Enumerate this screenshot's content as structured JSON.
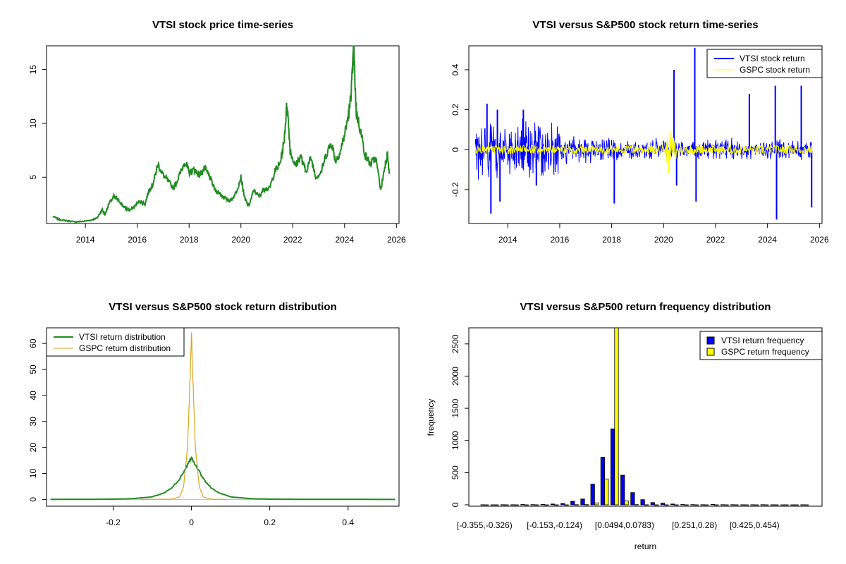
{
  "chart_data": [
    {
      "type": "line",
      "title": "VTSI stock price time-series",
      "xlabel": "",
      "ylabel": "",
      "xlim": [
        2012.5,
        2026.1
      ],
      "ylim": [
        0.7,
        17.2
      ],
      "xticks": [
        2014,
        2016,
        2018,
        2020,
        2022,
        2024,
        2026
      ],
      "yticks": [
        5,
        10,
        15
      ],
      "series": [
        {
          "color": "#228B22",
          "points": [
            [
              2012.75,
              1.35
            ],
            [
              2013.0,
              1.05
            ],
            [
              2013.3,
              0.95
            ],
            [
              2013.6,
              0.85
            ],
            [
              2013.9,
              0.9
            ],
            [
              2014.2,
              1.0
            ],
            [
              2014.45,
              1.2
            ],
            [
              2014.65,
              2.0
            ],
            [
              2014.75,
              1.5
            ],
            [
              2014.9,
              2.5
            ],
            [
              2015.1,
              3.2
            ],
            [
              2015.3,
              2.8
            ],
            [
              2015.5,
              2.2
            ],
            [
              2015.7,
              1.9
            ],
            [
              2015.9,
              2.3
            ],
            [
              2016.1,
              2.8
            ],
            [
              2016.3,
              2.5
            ],
            [
              2016.45,
              3.8
            ],
            [
              2016.6,
              4.3
            ],
            [
              2016.8,
              6.2
            ],
            [
              2017.0,
              5.2
            ],
            [
              2017.2,
              4.6
            ],
            [
              2017.4,
              4.0
            ],
            [
              2017.6,
              5.0
            ],
            [
              2017.85,
              6.5
            ],
            [
              2018.0,
              5.4
            ],
            [
              2018.2,
              5.7
            ],
            [
              2018.4,
              5.2
            ],
            [
              2018.6,
              5.8
            ],
            [
              2018.8,
              5.0
            ],
            [
              2019.0,
              3.8
            ],
            [
              2019.2,
              3.5
            ],
            [
              2019.4,
              3.0
            ],
            [
              2019.6,
              2.8
            ],
            [
              2019.8,
              3.5
            ],
            [
              2020.0,
              5.0
            ],
            [
              2020.15,
              3.0
            ],
            [
              2020.3,
              2.3
            ],
            [
              2020.5,
              3.8
            ],
            [
              2020.7,
              3.2
            ],
            [
              2020.9,
              4.0
            ],
            [
              2021.1,
              3.9
            ],
            [
              2021.3,
              5.5
            ],
            [
              2021.5,
              6.2
            ],
            [
              2021.65,
              8.0
            ],
            [
              2021.78,
              12.0
            ],
            [
              2021.9,
              7.5
            ],
            [
              2022.1,
              6.0
            ],
            [
              2022.3,
              7.0
            ],
            [
              2022.5,
              5.5
            ],
            [
              2022.7,
              6.8
            ],
            [
              2022.9,
              5.0
            ],
            [
              2023.1,
              5.5
            ],
            [
              2023.3,
              7.2
            ],
            [
              2023.5,
              8.2
            ],
            [
              2023.65,
              6.5
            ],
            [
              2023.85,
              7.5
            ],
            [
              2024.05,
              9.5
            ],
            [
              2024.2,
              11.5
            ],
            [
              2024.3,
              14.5
            ],
            [
              2024.35,
              17.1
            ],
            [
              2024.45,
              11.0
            ],
            [
              2024.6,
              9.5
            ],
            [
              2024.8,
              7.0
            ],
            [
              2025.0,
              6.2
            ],
            [
              2025.2,
              6.8
            ],
            [
              2025.4,
              3.8
            ],
            [
              2025.55,
              6.0
            ],
            [
              2025.65,
              7.2
            ],
            [
              2025.72,
              5.3
            ]
          ]
        }
      ]
    },
    {
      "type": "line",
      "title": "VTSI versus S&P500 stock return time-series",
      "xlabel": "",
      "ylabel": "",
      "xlim": [
        2012.5,
        2026.1
      ],
      "ylim": [
        -0.37,
        0.52
      ],
      "xticks": [
        2014,
        2016,
        2018,
        2020,
        2022,
        2024,
        2026
      ],
      "yticks": [
        -0.2,
        0.0,
        0.2,
        0.4
      ],
      "legend": "top-right",
      "legend_entries": [
        "VTSI stock return",
        "GSPC stock return"
      ],
      "series": [
        {
          "name": "VTSI stock return",
          "color": "#0000FF",
          "spikes": [
            [
              2013.2,
              0.23
            ],
            [
              2013.35,
              -0.32
            ],
            [
              2013.6,
              0.2
            ],
            [
              2013.7,
              -0.26
            ],
            [
              2014.6,
              0.2
            ],
            [
              2015.1,
              -0.18
            ],
            [
              2018.1,
              -0.27
            ],
            [
              2020.4,
              0.4
            ],
            [
              2020.5,
              -0.18
            ],
            [
              2021.2,
              0.51
            ],
            [
              2021.25,
              -0.26
            ],
            [
              2023.3,
              0.28
            ],
            [
              2024.3,
              0.32
            ],
            [
              2024.35,
              -0.35
            ],
            [
              2025.3,
              0.32
            ],
            [
              2025.7,
              -0.29
            ]
          ]
        },
        {
          "name": "GSPC stock return",
          "color": "#FFFF00",
          "spikes": [
            [
              2020.2,
              -0.12
            ],
            [
              2020.25,
              0.09
            ]
          ]
        }
      ]
    },
    {
      "type": "line",
      "title": "VTSI versus S&P500 stock return distribution",
      "xlabel": "",
      "ylabel": "",
      "xlim": [
        -0.37,
        0.53
      ],
      "ylim": [
        0,
        65
      ],
      "xticks": [
        -0.2,
        0.0,
        0.2,
        0.4
      ],
      "yticks": [
        0,
        10,
        20,
        30,
        40,
        50,
        60
      ],
      "legend": "top-left",
      "legend_entries": [
        "VTSI return distribution",
        "GSPC return distribution"
      ],
      "series": [
        {
          "name": "VTSI return distribution",
          "color": "#228B22",
          "points": [
            [
              -0.36,
              0
            ],
            [
              -0.2,
              0.1
            ],
            [
              -0.15,
              0.3
            ],
            [
              -0.1,
              1.0
            ],
            [
              -0.07,
              2.5
            ],
            [
              -0.05,
              4.5
            ],
            [
              -0.03,
              8.0
            ],
            [
              -0.015,
              12.0
            ],
            [
              -0.005,
              15.0
            ],
            [
              0.0,
              16.0
            ],
            [
              0.005,
              15.0
            ],
            [
              0.015,
              12.0
            ],
            [
              0.03,
              8.0
            ],
            [
              0.05,
              4.5
            ],
            [
              0.07,
              2.5
            ],
            [
              0.1,
              1.0
            ],
            [
              0.15,
              0.3
            ],
            [
              0.2,
              0.1
            ],
            [
              0.3,
              0.05
            ],
            [
              0.52,
              0
            ]
          ]
        },
        {
          "name": "GSPC return distribution",
          "color": "#DAA520",
          "points": [
            [
              -0.13,
              0
            ],
            [
              -0.05,
              0.1
            ],
            [
              -0.03,
              1.0
            ],
            [
              -0.02,
              5.0
            ],
            [
              -0.01,
              20.0
            ],
            [
              -0.005,
              40.0
            ],
            [
              0.0,
              64.0
            ],
            [
              0.005,
              40.0
            ],
            [
              0.01,
              20.0
            ],
            [
              0.02,
              5.0
            ],
            [
              0.03,
              1.0
            ],
            [
              0.05,
              0.1
            ],
            [
              0.09,
              0
            ]
          ]
        }
      ]
    },
    {
      "type": "bar",
      "title": "VTSI versus S&P500 return frequency distribution",
      "xlabel": "return",
      "ylabel": "frequency",
      "ylim": [
        0,
        2750
      ],
      "yticks": [
        0,
        500,
        1000,
        1500,
        2000,
        2500
      ],
      "tick_labels": [
        {
          "index": 0,
          "label": "[-0.355,-0.326)"
        },
        {
          "index": 7,
          "label": "[-0.153,-0.124)"
        },
        {
          "index": 14,
          "label": "[0.0494,0.0783)"
        },
        {
          "index": 21,
          "label": "[0.251,0.28)"
        },
        {
          "index": 27,
          "label": "[0.425,0.454)"
        }
      ],
      "legend": "top-right",
      "legend_entries": [
        "VTSI return frequency",
        "GSPC return frequency"
      ],
      "series": [
        {
          "name": "VTSI return frequency",
          "color": "#0000FF",
          "values": [
            1,
            0,
            2,
            1,
            5,
            3,
            8,
            12,
            20,
            55,
            90,
            320,
            740,
            1180,
            460,
            190,
            80,
            35,
            25,
            12,
            6,
            3,
            2,
            8,
            2,
            2,
            1,
            1,
            2,
            1,
            0,
            0,
            1
          ]
        },
        {
          "name": "GSPC return frequency",
          "color": "#FFFF00",
          "values": [
            0,
            0,
            0,
            0,
            0,
            0,
            0,
            0,
            0,
            2,
            3,
            30,
            400,
            2750,
            60,
            3,
            1,
            0,
            0,
            0,
            0,
            0,
            0,
            0,
            0,
            0,
            0,
            0,
            0,
            0,
            0,
            0,
            0
          ]
        }
      ]
    }
  ]
}
